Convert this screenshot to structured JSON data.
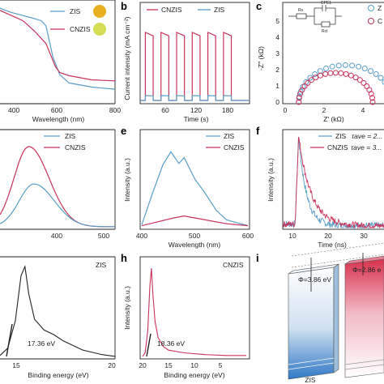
{
  "colors": {
    "zis": "#5a9ec9",
    "cnzis": "#c8325a",
    "axis": "#222222"
  },
  "panels": {
    "a": {
      "letter": "",
      "xlabel": "Wavelength (nm)",
      "xticks": [
        "400",
        "600",
        "800"
      ],
      "legend": [
        "ZIS",
        "CNZIS"
      ]
    },
    "b": {
      "letter": "b",
      "xlabel": "Time (s)",
      "ylabel": "Current intensity (mA cm⁻²)",
      "xticks": [
        "60",
        "120",
        "180"
      ],
      "legend": [
        "CNZIS",
        "ZIS"
      ]
    },
    "c": {
      "letter": "c",
      "xlabel": "Z' (kΩ)",
      "ylabel": "-Z'' (kΩ)",
      "xticks": [
        "0",
        "2",
        "4"
      ],
      "yticks": [
        "0",
        "1",
        "2",
        "3",
        "4",
        "5"
      ],
      "circuit": {
        "r1": "Rs",
        "cpe": "CPE1",
        "r2": "Rct"
      },
      "legend_partial": [
        "Z",
        "C"
      ]
    },
    "d": {
      "letter": "",
      "xticks": [
        "400",
        "500"
      ],
      "legend": [
        "ZIS",
        "CNZIS"
      ]
    },
    "e": {
      "letter": "e",
      "xlabel": "Wavelength (nm)",
      "ylabel": "Intensity (a.u.)",
      "xticks": [
        "400",
        "500",
        "600"
      ],
      "legend": [
        "ZIS",
        "CNZIS"
      ]
    },
    "f": {
      "letter": "f",
      "xlabel": "Time (ns)",
      "ylabel": "Intensity (a.u.)",
      "xticks": [
        "10",
        "20",
        "30"
      ],
      "legend": [
        "ZIS",
        "CNZIS"
      ],
      "tau_zis": "τave = 2...",
      "tau_cnzis": "τave = 3..."
    },
    "g": {
      "letter": "",
      "xlabel": "Binding energy (eV)",
      "xticks": [
        "15",
        "20"
      ],
      "label": "ZIS",
      "annotation": "17.36 eV"
    },
    "h": {
      "letter": "h",
      "xlabel": "Binding energy (eV)",
      "ylabel": "Intensity (a.u.)",
      "xticks": [
        "20",
        "15",
        "10",
        "5"
      ],
      "label": "CNZIS",
      "annotation": "18.36 eV"
    },
    "i": {
      "letter": "i",
      "phi_zis": "Φ=3.86 eV",
      "phi_cnzis": "Φ=2.86 e",
      "bottom_label": "ZIS"
    }
  },
  "chart_data": [
    {
      "type": "line",
      "panel": "a",
      "title": "",
      "xlabel": "Wavelength (nm)",
      "ylabel": "",
      "xlim": [
        300,
        800
      ],
      "series": [
        {
          "name": "ZIS",
          "x": [
            300,
            350,
            400,
            450,
            480,
            500,
            530,
            560,
            600,
            700,
            800
          ],
          "y": [
            0.92,
            0.88,
            0.85,
            0.82,
            0.8,
            0.75,
            0.45,
            0.28,
            0.2,
            0.16,
            0.14
          ]
        },
        {
          "name": "CNZIS",
          "x": [
            300,
            350,
            400,
            450,
            500,
            520,
            540,
            560,
            600,
            700,
            800
          ],
          "y": [
            0.9,
            0.85,
            0.8,
            0.7,
            0.58,
            0.47,
            0.36,
            0.3,
            0.27,
            0.23,
            0.22
          ]
        }
      ]
    },
    {
      "type": "line",
      "panel": "b",
      "xlabel": "Time (s)",
      "ylabel": "Current intensity (mA cm⁻²)",
      "xlim": [
        0,
        210
      ],
      "series": [
        {
          "name": "CNZIS",
          "on_off_cycles": 6,
          "on_level": 0.028,
          "off_level": 0.0
        },
        {
          "name": "ZIS",
          "on_off_cycles": 6,
          "on_level": 0.002,
          "off_level": 0.0
        }
      ]
    },
    {
      "type": "scatter",
      "panel": "c",
      "xlabel": "Z' (kΩ)",
      "ylabel": "-Z'' (kΩ)",
      "xlim": [
        0,
        5
      ],
      "ylim": [
        0,
        5
      ],
      "series": [
        {
          "name": "ZIS",
          "center": 3.1,
          "radius": 2.4
        },
        {
          "name": "CNZIS",
          "center": 2.6,
          "radius": 1.9
        }
      ]
    },
    {
      "type": "line",
      "panel": "d",
      "xlim": [
        300,
        520
      ],
      "series": [
        {
          "name": "ZIS",
          "peak_x": 365,
          "peak_y": 0.48
        },
        {
          "name": "CNZIS",
          "peak_x": 355,
          "peak_y": 0.9
        }
      ]
    },
    {
      "type": "line",
      "panel": "e",
      "xlabel": "Wavelength (nm)",
      "ylabel": "Intensity (a.u.)",
      "xlim": [
        400,
        600
      ],
      "series": [
        {
          "name": "ZIS",
          "x": [
            400,
            420,
            440,
            455,
            470,
            480,
            500,
            520,
            540,
            560,
            600
          ],
          "y": [
            0.03,
            0.35,
            0.65,
            0.78,
            0.66,
            0.72,
            0.5,
            0.35,
            0.18,
            0.08,
            0.02
          ]
        },
        {
          "name": "CNZIS",
          "x": [
            400,
            430,
            460,
            480,
            500,
            530,
            560,
            600
          ],
          "y": [
            0.02,
            0.06,
            0.1,
            0.12,
            0.1,
            0.07,
            0.04,
            0.02
          ]
        }
      ]
    },
    {
      "type": "line",
      "panel": "f",
      "xlabel": "Time (ns)",
      "ylabel": "Intensity (a.u.)",
      "xlim": [
        5,
        35
      ],
      "series": [
        {
          "name": "ZIS",
          "peak_x": 9.5,
          "decay_ns": 2.2
        },
        {
          "name": "CNZIS",
          "peak_x": 9.5,
          "decay_ns": 3.5
        }
      ]
    },
    {
      "type": "line",
      "panel": "g",
      "xlabel": "Binding energy (eV)",
      "annotation": "17.36 eV",
      "series": [
        {
          "name": "ZIS",
          "cutoff": 17.36
        }
      ]
    },
    {
      "type": "line",
      "panel": "h",
      "xlabel": "Binding energy (eV)",
      "ylabel": "Intensity (a.u.)",
      "annotation": "18.36 eV",
      "series": [
        {
          "name": "CNZIS",
          "cutoff": 18.36
        }
      ]
    }
  ]
}
